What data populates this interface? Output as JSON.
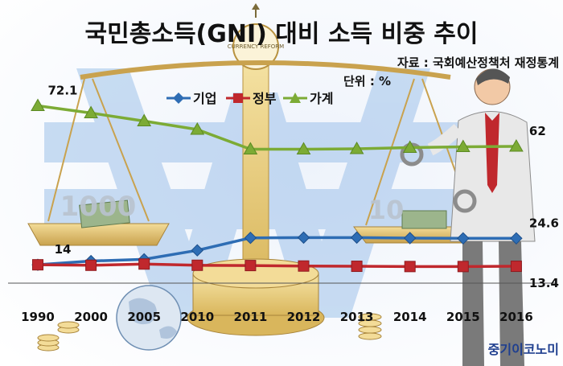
{
  "brand": {
    "label": "중기이코노미"
  },
  "illustration": {
    "scale_left_weight": "1000",
    "scale_right_weight": "10",
    "pillar_sign": "CURRENCY REFORM"
  },
  "chart_data": {
    "type": "line",
    "title": "국민총소득(GNI) 대비 소득 비중 추이",
    "source": "자료 : 국회예산정책처 재정통계",
    "unit": "단위 : %",
    "categories": [
      "1990",
      "2000",
      "2005",
      "2010",
      "2011",
      "2012",
      "2013",
      "2014",
      "2015",
      "2016"
    ],
    "series": [
      {
        "name": "기업",
        "color": "#2e6db4",
        "marker": "diamond",
        "values": [
          14,
          15.5,
          16.2,
          19.8,
          24.8,
          24.9,
          24.9,
          24.7,
          24.6,
          24.6
        ]
      },
      {
        "name": "정부",
        "color": "#c0282d",
        "marker": "square",
        "values": [
          14,
          13.8,
          14.3,
          13.8,
          13.7,
          13.5,
          13.4,
          13.3,
          13.3,
          13.4
        ]
      },
      {
        "name": "가계",
        "color": "#7cab35",
        "marker": "triangle",
        "values": [
          72.1,
          70.3,
          68.3,
          66.2,
          61.3,
          61.3,
          61.4,
          61.7,
          61.9,
          62
        ]
      }
    ],
    "data_labels": [
      {
        "series": "가계",
        "text": "72.1",
        "anchor": "start",
        "align": "above"
      },
      {
        "series": "가계",
        "text": "62",
        "anchor": "end",
        "align": "above"
      },
      {
        "series": "기업",
        "text": "14",
        "anchor": "start",
        "align": "above"
      },
      {
        "series": "기업",
        "text": "24.6",
        "anchor": "end",
        "align": "above"
      },
      {
        "series": "정부",
        "text": "13.4",
        "anchor": "end",
        "align": "below"
      }
    ],
    "legend_position": "top-center",
    "grid": false
  }
}
